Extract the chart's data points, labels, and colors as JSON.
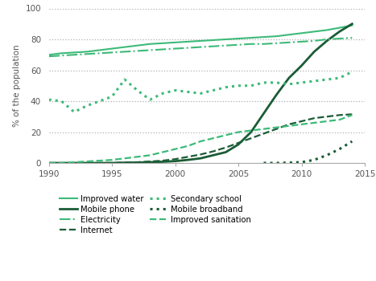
{
  "ylabel": "% of the population",
  "xlim": [
    1990,
    2015
  ],
  "ylim": [
    0,
    100
  ],
  "yticks": [
    0,
    20,
    40,
    60,
    80,
    100
  ],
  "xticks": [
    1990,
    1995,
    2000,
    2005,
    2010,
    2015
  ],
  "bg_color": "#ffffff",
  "grid_color": "#b0b0b0",
  "improved_water": {
    "years": [
      1990,
      1991,
      1992,
      1993,
      1994,
      1995,
      1996,
      1997,
      1998,
      1999,
      2000,
      2001,
      2002,
      2003,
      2004,
      2005,
      2006,
      2007,
      2008,
      2009,
      2010,
      2011,
      2012,
      2013,
      2014
    ],
    "values": [
      70,
      71,
      71.5,
      72,
      73,
      74,
      75,
      76,
      77,
      77.5,
      78,
      78.5,
      79,
      79.5,
      80,
      80.5,
      81,
      81.5,
      82,
      83,
      84,
      85,
      86,
      87.5,
      89
    ],
    "color": "#3dba78",
    "linestyle": "solid",
    "linewidth": 1.5,
    "label": "Improved water"
  },
  "mobile_phone": {
    "years": [
      1990,
      1991,
      1992,
      1993,
      1994,
      1995,
      1996,
      1997,
      1998,
      1999,
      2000,
      2001,
      2002,
      2003,
      2004,
      2005,
      2006,
      2007,
      2008,
      2009,
      2010,
      2011,
      2012,
      2013,
      2014
    ],
    "values": [
      0,
      0,
      0,
      0,
      0,
      0,
      0.2,
      0.3,
      0.5,
      0.8,
      1.2,
      2,
      3,
      5,
      7,
      12,
      20,
      32,
      44,
      55,
      63,
      72,
      79,
      85,
      90
    ],
    "color": "#1a5c35",
    "linestyle": "solid",
    "linewidth": 2.0,
    "label": "Mobile phone"
  },
  "electricity": {
    "years": [
      1990,
      1991,
      1992,
      1993,
      1994,
      1995,
      1996,
      1997,
      1998,
      1999,
      2000,
      2001,
      2002,
      2003,
      2004,
      2005,
      2006,
      2007,
      2008,
      2009,
      2010,
      2011,
      2012,
      2013,
      2014
    ],
    "values": [
      69,
      69.5,
      70,
      70.5,
      71,
      71.5,
      72,
      72.5,
      73,
      73.5,
      74,
      74.5,
      75,
      75.5,
      76,
      76.5,
      77,
      77,
      77.5,
      78,
      78.5,
      79,
      80,
      80.5,
      81
    ],
    "color": "#3dba78",
    "linestyle": "dashdot",
    "linewidth": 1.5,
    "label": "Electricity"
  },
  "internet": {
    "years": [
      1990,
      1991,
      1992,
      1993,
      1994,
      1995,
      1996,
      1997,
      1998,
      1999,
      2000,
      2001,
      2002,
      2003,
      2004,
      2005,
      2006,
      2007,
      2008,
      2009,
      2010,
      2011,
      2012,
      2013,
      2014
    ],
    "values": [
      0,
      0,
      0,
      0,
      0,
      0,
      0.3,
      0.5,
      1,
      1.5,
      2.5,
      4,
      5.5,
      7.5,
      10,
      13,
      16,
      19,
      22,
      25,
      27,
      29,
      30,
      31,
      31.5
    ],
    "color": "#1a5c35",
    "linestyle": "dashed",
    "linewidth": 1.6,
    "label": "Internet"
  },
  "secondary_school": {
    "years": [
      1990,
      1991,
      1992,
      1993,
      1994,
      1995,
      1996,
      1997,
      1998,
      1999,
      2000,
      2001,
      2002,
      2003,
      2004,
      2005,
      2006,
      2007,
      2008,
      2009,
      2010,
      2011,
      2012,
      2013,
      2014
    ],
    "values": [
      41,
      40,
      33,
      37,
      40,
      43,
      54,
      47,
      41,
      45,
      47,
      46,
      45,
      47,
      49,
      50,
      50,
      52,
      52,
      51,
      52,
      53,
      54,
      55,
      59
    ],
    "color": "#3dba78",
    "linestyle": "dotted",
    "linewidth": 2.2,
    "label": "Secondary school"
  },
  "mobile_broadband": {
    "years": [
      2007,
      2008,
      2009,
      2010,
      2011,
      2012,
      2013,
      2014
    ],
    "values": [
      0,
      0,
      0.2,
      0.5,
      2,
      5,
      9,
      14
    ],
    "color": "#1a5c35",
    "linestyle": "dotted",
    "linewidth": 2.2,
    "label": "Mobile broadband"
  },
  "improved_sanitation": {
    "years": [
      1990,
      1991,
      1992,
      1993,
      1994,
      1995,
      1996,
      1997,
      1998,
      1999,
      2000,
      2001,
      2002,
      2003,
      2004,
      2005,
      2006,
      2007,
      2008,
      2009,
      2010,
      2011,
      2012,
      2013,
      2014
    ],
    "values": [
      0,
      0,
      0.5,
      1,
      1.5,
      2,
      3,
      4,
      5,
      7,
      9,
      11,
      14,
      16,
      18,
      20,
      21,
      22,
      23,
      24,
      25,
      26,
      27,
      28,
      31
    ],
    "color": "#3dba78",
    "linestyle": "dashed",
    "linewidth": 1.6,
    "label": "Improved sanitation"
  },
  "legend_col1": [
    "improved_water",
    "electricity",
    "secondary_school",
    "improved_sanitation"
  ],
  "legend_col2": [
    "mobile_phone",
    "internet",
    "mobile_broadband"
  ]
}
